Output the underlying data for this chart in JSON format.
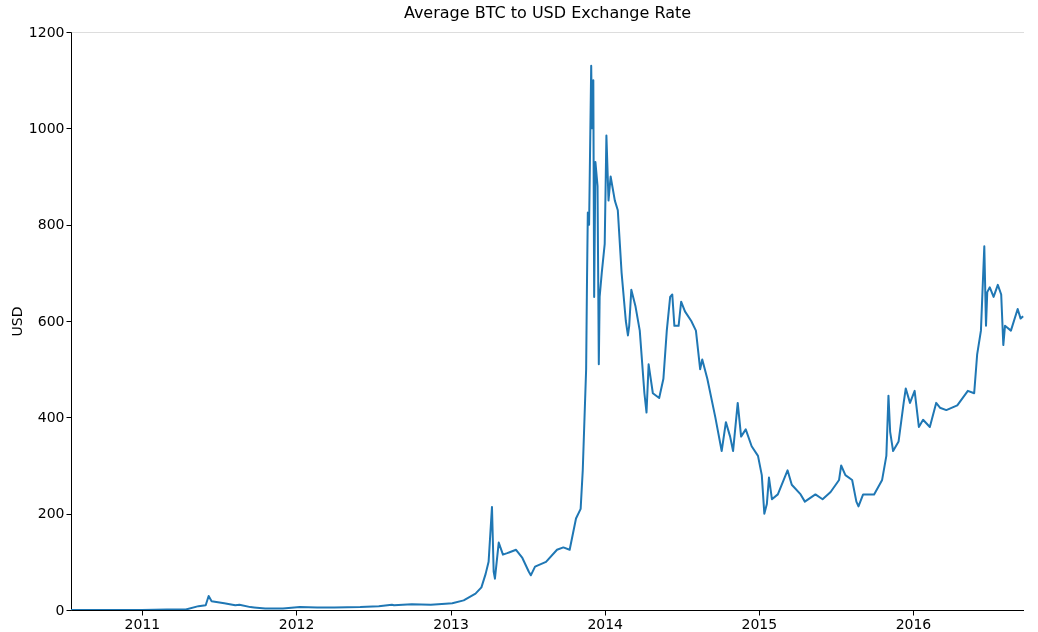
{
  "chart_data": {
    "type": "line",
    "title": "Average BTC to USD Exchange Rate",
    "ylabel": "USD",
    "x": [
      "2010-07-17",
      "2010-10-01",
      "2011-01-01",
      "2011-03-01",
      "2011-04-15",
      "2011-05-15",
      "2011-06-01",
      "2011-06-08",
      "2011-06-15",
      "2011-07-15",
      "2011-08-10",
      "2011-08-20",
      "2011-09-15",
      "2011-10-20",
      "2011-12-01",
      "2012-01-10",
      "2012-02-20",
      "2012-04-01",
      "2012-06-01",
      "2012-07-15",
      "2012-08-15",
      "2012-08-20",
      "2012-10-01",
      "2012-11-15",
      "2012-12-20",
      "2013-01-05",
      "2013-02-01",
      "2013-03-01",
      "2013-03-15",
      "2013-03-25",
      "2013-04-01",
      "2013-04-09",
      "2013-04-13",
      "2013-04-16",
      "2013-04-25",
      "2013-05-05",
      "2013-05-15",
      "2013-06-05",
      "2013-06-20",
      "2013-07-05",
      "2013-07-10",
      "2013-07-20",
      "2013-08-15",
      "2013-09-10",
      "2013-09-25",
      "2013-10-10",
      "2013-10-25",
      "2013-11-05",
      "2013-11-10",
      "2013-11-18",
      "2013-11-20",
      "2013-11-22",
      "2013-11-25",
      "2013-11-30",
      "2013-12-02",
      "2013-12-05",
      "2013-12-07",
      "2013-12-10",
      "2013-12-15",
      "2013-12-18",
      "2013-12-20",
      "2013-12-25",
      "2014-01-01",
      "2014-01-05",
      "2014-01-10",
      "2014-01-15",
      "2014-01-25",
      "2014-02-01",
      "2014-02-10",
      "2014-02-20",
      "2014-02-25",
      "2014-02-28",
      "2014-03-05",
      "2014-03-15",
      "2014-03-25",
      "2014-04-05",
      "2014-04-10",
      "2014-04-15",
      "2014-04-25",
      "2014-05-10",
      "2014-05-20",
      "2014-05-28",
      "2014-06-05",
      "2014-06-10",
      "2014-06-15",
      "2014-06-25",
      "2014-07-01",
      "2014-07-10",
      "2014-07-25",
      "2014-08-05",
      "2014-08-15",
      "2014-08-20",
      "2014-09-01",
      "2014-09-20",
      "2014-10-05",
      "2014-10-15",
      "2014-10-25",
      "2014-11-01",
      "2014-11-12",
      "2014-11-20",
      "2014-12-01",
      "2014-12-15",
      "2014-12-30",
      "2015-01-08",
      "2015-01-14",
      "2015-01-20",
      "2015-01-25",
      "2015-02-01",
      "2015-02-15",
      "2015-03-10",
      "2015-03-20",
      "2015-04-10",
      "2015-04-20",
      "2015-05-15",
      "2015-06-01",
      "2015-06-20",
      "2015-07-10",
      "2015-07-15",
      "2015-07-25",
      "2015-08-10",
      "2015-08-20",
      "2015-08-25",
      "2015-09-05",
      "2015-10-01",
      "2015-10-20",
      "2015-10-30",
      "2015-11-04",
      "2015-11-08",
      "2015-11-15",
      "2015-11-28",
      "2015-12-10",
      "2015-12-15",
      "2015-12-25",
      "2016-01-05",
      "2016-01-15",
      "2016-01-25",
      "2016-02-10",
      "2016-02-25",
      "2016-03-05",
      "2016-03-20",
      "2016-04-15",
      "2016-05-10",
      "2016-05-25",
      "2016-06-01",
      "2016-06-10",
      "2016-06-15",
      "2016-06-18",
      "2016-06-22",
      "2016-06-25",
      "2016-07-01",
      "2016-07-10",
      "2016-07-20",
      "2016-07-28",
      "2016-08-02",
      "2016-08-06",
      "2016-08-20",
      "2016-09-05",
      "2016-09-12",
      "2016-09-18"
    ],
    "series": [
      {
        "color": "#1f77b4",
        "values": [
          0,
          0,
          0,
          1,
          1,
          8,
          10,
          29,
          18,
          14,
          10,
          11,
          6,
          3,
          3,
          6,
          5,
          5,
          6,
          8,
          11,
          10,
          12,
          11,
          13,
          14,
          20,
          34,
          47,
          75,
          100,
          214,
          80,
          65,
          140,
          115,
          118,
          125,
          108,
          80,
          72,
          90,
          100,
          125,
          130,
          125,
          190,
          210,
          290,
          500,
          680,
          825,
          800,
          1130,
          1000,
          1100,
          650,
          930,
          880,
          510,
          650,
          700,
          760,
          985,
          850,
          900,
          850,
          830,
          700,
          600,
          570,
          590,
          665,
          630,
          580,
          450,
          410,
          510,
          450,
          440,
          480,
          580,
          650,
          655,
          590,
          590,
          640,
          620,
          600,
          580,
          500,
          520,
          480,
          400,
          330,
          390,
          360,
          330,
          430,
          360,
          375,
          340,
          320,
          280,
          200,
          220,
          275,
          230,
          240,
          290,
          260,
          240,
          225,
          240,
          230,
          245,
          270,
          300,
          280,
          270,
          225,
          215,
          240,
          240,
          270,
          320,
          445,
          370,
          330,
          350,
          430,
          460,
          430,
          455,
          380,
          395,
          380,
          430,
          420,
          415,
          425,
          455,
          450,
          530,
          580,
          690,
          755,
          590,
          660,
          670,
          650,
          675,
          655,
          550,
          590,
          580,
          625,
          605,
          610
        ]
      }
    ],
    "xlim": [
      "2010-07-17",
      "2016-09-20"
    ],
    "xticks": [
      {
        "value": "2011-01-01",
        "label": "2011"
      },
      {
        "value": "2012-01-01",
        "label": "2012"
      },
      {
        "value": "2013-01-01",
        "label": "2013"
      },
      {
        "value": "2014-01-01",
        "label": "2014"
      },
      {
        "value": "2015-01-01",
        "label": "2015"
      },
      {
        "value": "2016-01-01",
        "label": "2016"
      }
    ],
    "ylim": [
      0,
      1200
    ],
    "yticks": [
      0,
      200,
      400,
      600,
      800,
      1000,
      1200
    ],
    "grid": false,
    "line_style": "solid"
  }
}
